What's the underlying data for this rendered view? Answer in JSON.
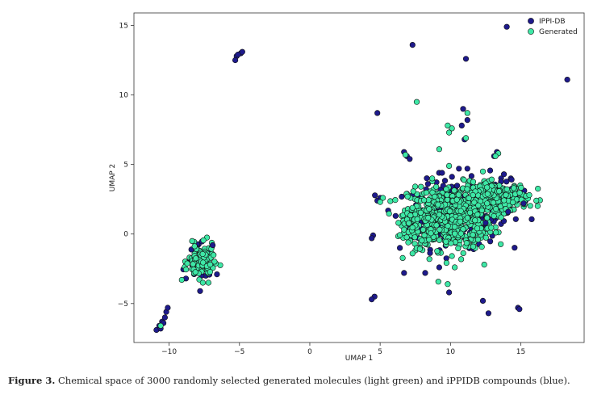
{
  "caption": {
    "label": "Figure 3.",
    "text": " Chemical space of 3000 randomly selected generated molecules (light green) and iPPIDB compounds (blue)."
  },
  "colors": {
    "ippi": "#1e1a8c",
    "generated": "#3ee8a6",
    "edge": "#111111"
  },
  "chart_data": {
    "type": "scatter",
    "title": "",
    "xlabel": "UMAP 1",
    "ylabel": "UMAP 2",
    "xlim": [
      -12.5,
      19.5
    ],
    "ylim": [
      -7.8,
      15.9
    ],
    "xticks": [
      -10,
      -5,
      0,
      5,
      10,
      15
    ],
    "yticks": [
      -5,
      0,
      5,
      10,
      15
    ],
    "grid": false,
    "legend": "top-right",
    "series": [
      {
        "name": "IPPI-DB",
        "color": "#1e1a8c",
        "points": [
          [
            14.0,
            14.9
          ],
          [
            18.3,
            11.1
          ],
          [
            7.3,
            13.6
          ],
          [
            11.1,
            12.6
          ],
          [
            -5.2,
            12.8
          ],
          [
            -4.9,
            13.0
          ],
          [
            -5.3,
            12.5
          ],
          [
            -5.1,
            12.9
          ],
          [
            -4.8,
            13.1
          ],
          [
            4.8,
            8.7
          ],
          [
            10.9,
            9.0
          ],
          [
            11.2,
            8.2
          ],
          [
            10.8,
            7.8
          ],
          [
            11.0,
            6.8
          ],
          [
            6.7,
            5.9
          ],
          [
            6.9,
            5.6
          ],
          [
            7.1,
            5.4
          ],
          [
            10.6,
            4.7
          ],
          [
            11.2,
            4.7
          ],
          [
            13.3,
            5.9
          ],
          [
            13.1,
            5.6
          ],
          [
            4.5,
            -0.1
          ],
          [
            4.4,
            -0.3
          ],
          [
            4.6,
            -4.5
          ],
          [
            4.4,
            -4.7
          ],
          [
            9.9,
            -4.2
          ],
          [
            12.3,
            -4.8
          ],
          [
            12.7,
            -5.7
          ],
          [
            14.8,
            -5.3
          ],
          [
            14.9,
            -5.4
          ],
          [
            6.7,
            -2.8
          ],
          [
            8.2,
            -2.8
          ],
          [
            9.2,
            -2.4
          ],
          [
            -10.9,
            -6.9
          ],
          [
            -10.7,
            -6.6
          ],
          [
            -10.5,
            -6.3
          ],
          [
            -10.3,
            -6.0
          ],
          [
            -10.2,
            -5.6
          ],
          [
            -10.1,
            -5.3
          ],
          [
            -10.6,
            -6.8
          ],
          [
            -10.4,
            -6.4
          ],
          [
            -7.8,
            -4.1
          ],
          [
            -6.6,
            -2.9
          ],
          [
            -8.8,
            -3.2
          ],
          [
            -6.9,
            -0.8
          ],
          [
            5.0,
            2.6
          ],
          [
            4.8,
            2.4
          ],
          [
            6.1,
            1.3
          ],
          [
            6.4,
            -1.0
          ],
          [
            14.1,
            1.6
          ],
          [
            15.2,
            2.2
          ],
          [
            12.5,
            0.8
          ],
          [
            9.4,
            4.4
          ],
          [
            8.4,
            3.6
          ],
          [
            13.8,
            4.3
          ]
        ]
      },
      {
        "name": "Generated",
        "color": "#3ee8a6",
        "points": [
          [
            7.6,
            9.5
          ],
          [
            11.2,
            8.7
          ],
          [
            9.8,
            7.8
          ],
          [
            10.1,
            7.6
          ],
          [
            9.9,
            7.3
          ],
          [
            11.1,
            6.9
          ],
          [
            9.2,
            6.1
          ],
          [
            13.4,
            5.8
          ],
          [
            13.2,
            5.6
          ],
          [
            6.8,
            5.7
          ],
          [
            9.9,
            4.9
          ],
          [
            5.2,
            2.6
          ],
          [
            5.0,
            2.3
          ],
          [
            11.6,
            2.8
          ],
          [
            12.3,
            4.5
          ],
          [
            12.6,
            2.2
          ],
          [
            14.5,
            3.3
          ],
          [
            15.6,
            2.8
          ],
          [
            16.1,
            2.4
          ],
          [
            6.3,
            0.8
          ],
          [
            7.3,
            -1.4
          ],
          [
            8.5,
            -1.8
          ],
          [
            10.3,
            -2.4
          ],
          [
            9.8,
            -3.6
          ],
          [
            12.4,
            -2.2
          ],
          [
            8.7,
            4.0
          ],
          [
            7.9,
            3.4
          ],
          [
            11.9,
            0.4
          ],
          [
            13.6,
            1.2
          ],
          [
            7.0,
            -0.6
          ],
          [
            -10.6,
            -6.6
          ],
          [
            -7.6,
            -3.5
          ],
          [
            -9.1,
            -3.3
          ]
        ]
      }
    ],
    "clusters_note_free": true
  },
  "legend": [
    {
      "label": "IPPI-DB",
      "color": "#1e1a8c"
    },
    {
      "label": "Generated",
      "color": "#3ee8a6"
    }
  ]
}
